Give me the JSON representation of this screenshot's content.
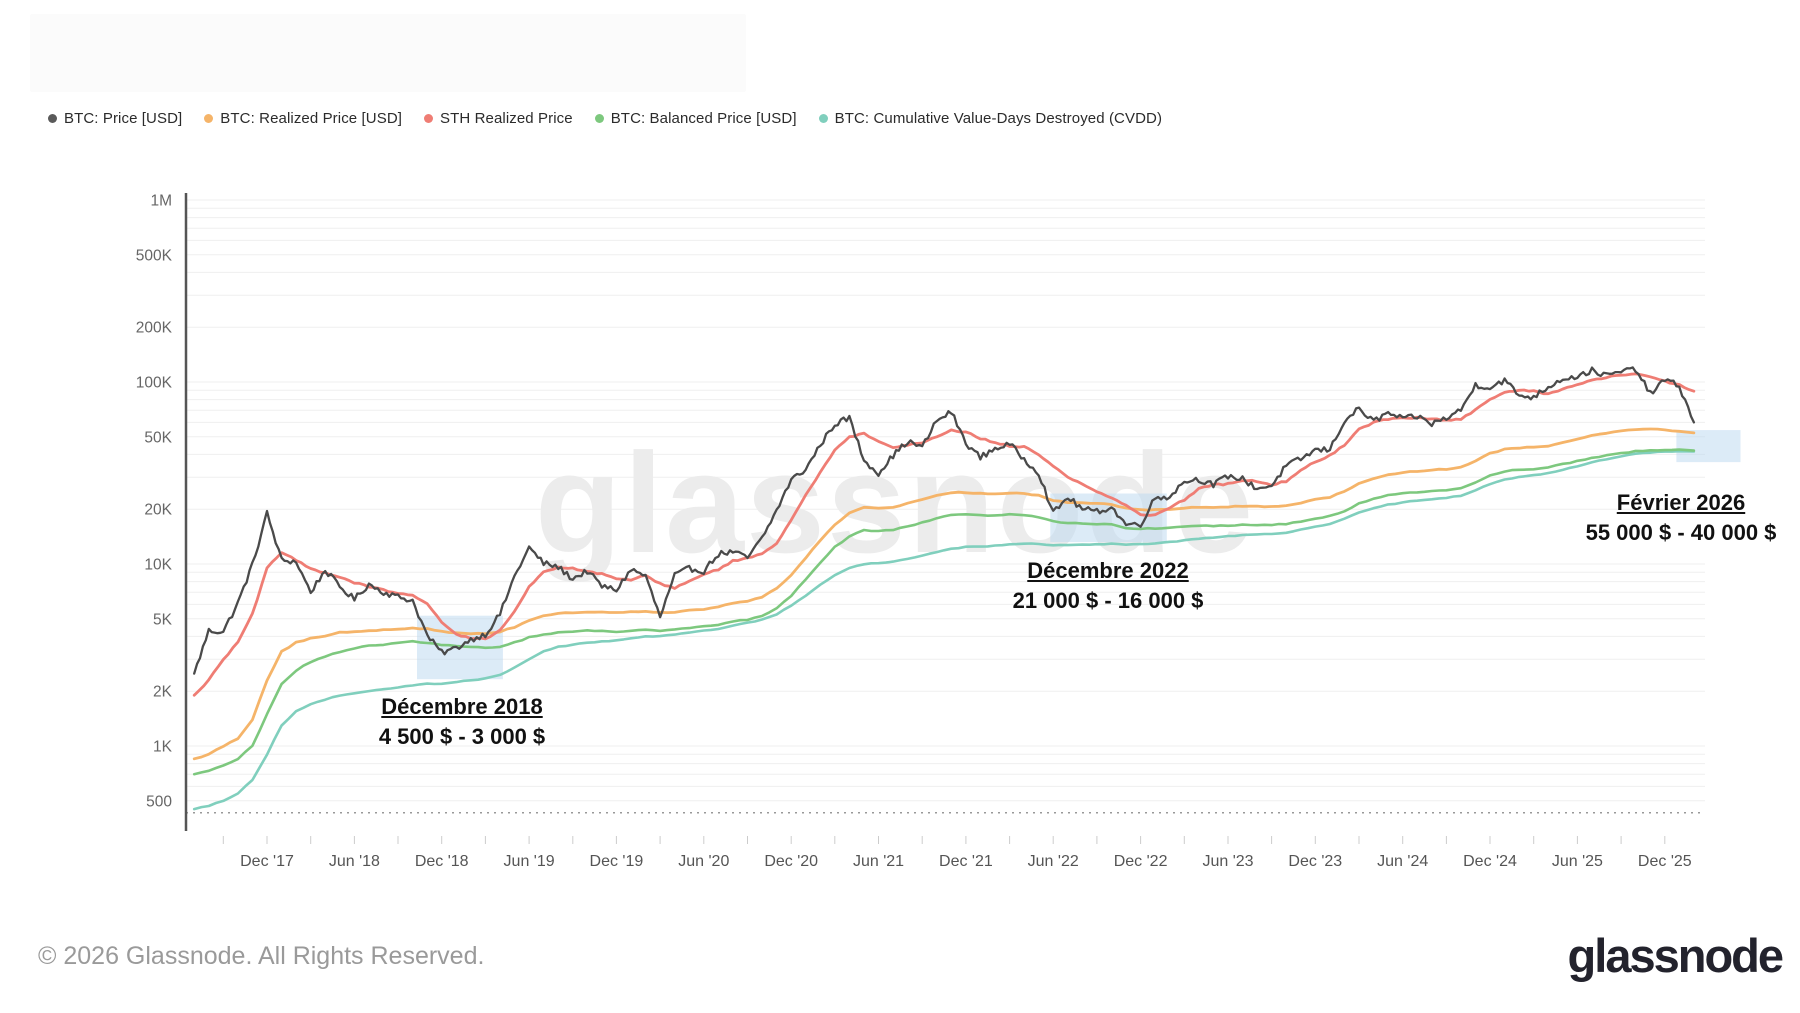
{
  "watermark": "glassnode",
  "footer": {
    "copyright": "© 2026 Glassnode. All Rights Reserved.",
    "logo": "glassnode"
  },
  "annotations": [
    {
      "title": "Décembre 2018",
      "range": "4 500 $ - 3 000 $"
    },
    {
      "title": "Décembre 2022",
      "range": "21 000 $ - 16 000 $"
    },
    {
      "title": "Février 2026",
      "range": "55 000 $ - 40 000 $"
    }
  ],
  "colors": {
    "highlight_box": "#b9d8f0",
    "grid": "#efefef",
    "axis": "#555555",
    "tick_label": "#666666",
    "watermark": "#ececec",
    "dotted_baseline": "#999999"
  },
  "chart_data": {
    "type": "line",
    "title": "",
    "xlabel": "",
    "ylabel": "",
    "yscale": "log",
    "ylim": [
      430,
      1000000
    ],
    "x_start_month": "2017-07",
    "x_end_month": "2026-02",
    "legend_position": "top-left",
    "grid": true,
    "y_ticks": [
      {
        "label": "1M",
        "value": 1000000
      },
      {
        "label": "500K",
        "value": 500000
      },
      {
        "label": "200K",
        "value": 200000
      },
      {
        "label": "100K",
        "value": 100000
      },
      {
        "label": "50K",
        "value": 50000
      },
      {
        "label": "20K",
        "value": 20000
      },
      {
        "label": "10K",
        "value": 10000
      },
      {
        "label": "5K",
        "value": 5000
      },
      {
        "label": "2K",
        "value": 2000
      },
      {
        "label": "1K",
        "value": 1000
      },
      {
        "label": "500",
        "value": 500
      }
    ],
    "x_ticks": [
      {
        "label": "Dec '17",
        "month": 5
      },
      {
        "label": "Jun '18",
        "month": 11
      },
      {
        "label": "Dec '18",
        "month": 17
      },
      {
        "label": "Jun '19",
        "month": 23
      },
      {
        "label": "Dec '19",
        "month": 29
      },
      {
        "label": "Jun '20",
        "month": 35
      },
      {
        "label": "Dec '20",
        "month": 41
      },
      {
        "label": "Jun '21",
        "month": 47
      },
      {
        "label": "Dec '21",
        "month": 53
      },
      {
        "label": "Jun '22",
        "month": 59
      },
      {
        "label": "Dec '22",
        "month": 65
      },
      {
        "label": "Jun '23",
        "month": 71
      },
      {
        "label": "Dec '23",
        "month": 77
      },
      {
        "label": "Jun '24",
        "month": 83
      },
      {
        "label": "Dec '24",
        "month": 89
      },
      {
        "label": "Jun '25",
        "month": 95
      },
      {
        "label": "Dec '25",
        "month": 101
      }
    ],
    "baseline_value": 430,
    "highlight_boxes": [
      {
        "t0": 15.3,
        "t1": 21.2,
        "top": 5200,
        "bottom": 2330
      },
      {
        "t0": 58.8,
        "t1": 66.8,
        "top": 24400,
        "bottom": 13200
      },
      {
        "t0": 101.8,
        "t1": 106.2,
        "top": 54400,
        "bottom": 36300
      }
    ],
    "series": [
      {
        "name": "BTC: Price [USD]",
        "color": "#4a4a4a",
        "width": 2.3,
        "jitter": 0.016,
        "subdiv": 5,
        "values": [
          2500,
          4300,
          4250,
          6100,
          9900,
          19000,
          10500,
          10300,
          7000,
          9250,
          7500,
          6400,
          7750,
          7000,
          6600,
          6300,
          4050,
          3250,
          3450,
          3850,
          4100,
          5300,
          8550,
          12300,
          10100,
          9600,
          8300,
          9150,
          7550,
          7200,
          9350,
          8600,
          5100,
          8650,
          9450,
          9150,
          11350,
          11650,
          10800,
          13800,
          19700,
          29000,
          33100,
          45200,
          58800,
          63500,
          37300,
          31500,
          39500,
          47100,
          43800,
          61300,
          68500,
          46200,
          38500,
          43200,
          45500,
          37650,
          31800,
          19000,
          23300,
          20050,
          19400,
          20500,
          16500,
          16550,
          23100,
          23500,
          28500,
          29250,
          27200,
          30450,
          29250,
          26000,
          26950,
          34650,
          37700,
          42250,
          42550,
          61200,
          71300,
          60650,
          67500,
          62700,
          64600,
          59000,
          63300,
          70200,
          96400,
          93400,
          102400,
          84350,
          82550,
          94200,
          104600,
          107100,
          115800,
          108200,
          114000,
          118000,
          86000,
          103000,
          95000,
          60000
        ]
      },
      {
        "name": "BTC: Realized Price [USD]",
        "color": "#f5b469",
        "width": 2.8,
        "jitter": 0.0025,
        "subdiv": 2,
        "values": [
          850,
          900,
          1000,
          1100,
          1400,
          2300,
          3300,
          3700,
          3900,
          4000,
          4200,
          4250,
          4300,
          4350,
          4400,
          4450,
          4400,
          4250,
          4200,
          4150,
          4150,
          4250,
          4500,
          4900,
          5200,
          5350,
          5400,
          5450,
          5450,
          5400,
          5450,
          5500,
          5400,
          5450,
          5550,
          5650,
          5800,
          6100,
          6250,
          6600,
          7300,
          8700,
          10800,
          13500,
          16500,
          19000,
          20500,
          20300,
          20500,
          21500,
          22500,
          23700,
          24700,
          24700,
          24400,
          24300,
          24600,
          24500,
          23800,
          22400,
          21800,
          21700,
          21500,
          21300,
          20200,
          19800,
          19900,
          20000,
          20300,
          20500,
          20500,
          20600,
          20800,
          20700,
          20700,
          21000,
          21700,
          22700,
          23300,
          25000,
          27800,
          29500,
          31000,
          31800,
          32400,
          32800,
          33200,
          34000,
          37000,
          40500,
          42700,
          43500,
          43800,
          44600,
          46700,
          48500,
          50800,
          52500,
          54000,
          55000,
          55500,
          54500,
          53500,
          52500
        ]
      },
      {
        "name": "STH Realized Price",
        "color": "#ef7d74",
        "width": 2.8,
        "jitter": 0.004,
        "subdiv": 3,
        "values": [
          1900,
          2300,
          3000,
          3700,
          5300,
          9500,
          11500,
          10500,
          9500,
          8900,
          8500,
          7900,
          7500,
          7200,
          6900,
          6700,
          6000,
          4800,
          4100,
          3900,
          3900,
          4300,
          5500,
          7500,
          9000,
          9600,
          9500,
          9100,
          8800,
          8300,
          8200,
          8700,
          7800,
          7400,
          8000,
          8800,
          9300,
          10400,
          10800,
          11300,
          13000,
          17500,
          24000,
          32000,
          42000,
          50000,
          52000,
          47500,
          44000,
          45000,
          46500,
          50000,
          54500,
          53000,
          49000,
          46500,
          44500,
          44000,
          40000,
          34500,
          30000,
          27500,
          25000,
          23000,
          21000,
          18800,
          18500,
          20500,
          22500,
          26000,
          27300,
          27500,
          28800,
          28500,
          27300,
          28500,
          32500,
          36500,
          39500,
          45000,
          55000,
          60000,
          62500,
          63500,
          63800,
          62500,
          61500,
          62500,
          70000,
          80000,
          87500,
          90500,
          89000,
          86000,
          91000,
          97000,
          102000,
          106500,
          108500,
          110500,
          107000,
          101000,
          96000,
          89000
        ]
      },
      {
        "name": "BTC: Balanced Price [USD]",
        "color": "#7dc87e",
        "width": 2.6,
        "jitter": 0.0025,
        "subdiv": 2,
        "values": [
          700,
          730,
          780,
          850,
          1000,
          1500,
          2200,
          2600,
          2900,
          3100,
          3300,
          3450,
          3550,
          3600,
          3700,
          3750,
          3700,
          3600,
          3550,
          3500,
          3450,
          3500,
          3700,
          3950,
          4100,
          4200,
          4250,
          4300,
          4300,
          4250,
          4300,
          4350,
          4300,
          4350,
          4450,
          4550,
          4650,
          4850,
          4950,
          5200,
          5700,
          6700,
          8200,
          10200,
          12400,
          14200,
          15300,
          15200,
          15400,
          16100,
          16900,
          17800,
          18600,
          18700,
          18500,
          18400,
          18700,
          18600,
          18100,
          17200,
          16800,
          16700,
          16600,
          16500,
          15800,
          15600,
          15700,
          15800,
          16000,
          16200,
          16200,
          16300,
          16400,
          16400,
          16400,
          16600,
          17100,
          17800,
          18300,
          19500,
          21500,
          22800,
          23800,
          24400,
          24800,
          25100,
          25400,
          26000,
          28200,
          30700,
          32300,
          33000,
          33300,
          33900,
          35400,
          36700,
          38300,
          39500,
          40600,
          41700,
          42000,
          42300,
          42500,
          42000
        ]
      },
      {
        "name": "BTC: Cumulative Value-Days Destroyed (CVDD)",
        "color": "#80cfbd",
        "width": 2.6,
        "jitter": 0.002,
        "subdiv": 2,
        "values": [
          450,
          470,
          500,
          550,
          650,
          900,
          1300,
          1550,
          1700,
          1800,
          1900,
          1950,
          2000,
          2050,
          2100,
          2150,
          2200,
          2200,
          2250,
          2300,
          2350,
          2450,
          2700,
          3000,
          3300,
          3500,
          3600,
          3700,
          3750,
          3800,
          3900,
          4000,
          4000,
          4100,
          4200,
          4300,
          4400,
          4600,
          4750,
          4950,
          5300,
          5900,
          6700,
          7700,
          8700,
          9500,
          10000,
          10100,
          10300,
          10700,
          11100,
          11600,
          12100,
          12400,
          12500,
          12600,
          12800,
          12900,
          12900,
          12700,
          12700,
          12800,
          12800,
          12900,
          12800,
          12800,
          13000,
          13200,
          13500,
          13800,
          14000,
          14200,
          14400,
          14500,
          14600,
          14900,
          15400,
          16100,
          16600,
          17700,
          19200,
          20300,
          21200,
          21800,
          22300,
          22700,
          23100,
          23700,
          25400,
          27500,
          29000,
          30000,
          30700,
          31500,
          33000,
          34500,
          36200,
          37700,
          39000,
          40300,
          41000,
          41500,
          41800,
          41500
        ]
      }
    ]
  }
}
